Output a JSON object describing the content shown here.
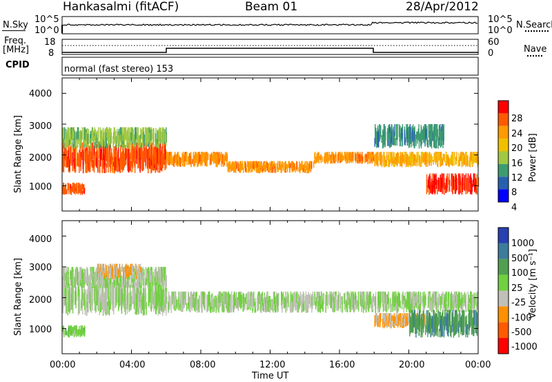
{
  "header": {
    "station": "Hankasalmi (fitACF)",
    "beam": "Beam 01",
    "date": "28/Apr/2012"
  },
  "top_panels": {
    "nsky_label": "N.Sky",
    "nsearch_label": "N.Search",
    "noise_ticks": [
      "10^5",
      "10^0"
    ],
    "noise_ticks_right": [
      "10^5",
      "10^0"
    ],
    "freq_label_1": "Freq.",
    "freq_label_2": "[MHz]",
    "freq_ticks": [
      "18",
      "8"
    ],
    "nave_label": "Nave",
    "nave_ticks": [
      "60",
      "0"
    ],
    "cpid_label": "CPID",
    "cpid_text": "normal (fast stereo) 153"
  },
  "axes": {
    "xticks": [
      "00:00",
      "04:00",
      "08:00",
      "12:00",
      "16:00",
      "20:00",
      "00:00"
    ],
    "xlabel": "Time UT",
    "ylabel": "Slant Range [km]",
    "yticks": [
      "4000",
      "3000",
      "2000",
      "1000"
    ]
  },
  "power_colorbar": {
    "label": "Power [dB]",
    "ticks": [
      "28",
      "24",
      "20",
      "16",
      "12",
      "8",
      "4"
    ],
    "colors": [
      "#ff0000",
      "#ff5a00",
      "#ff9a00",
      "#f0c000",
      "#a0c840",
      "#3c9c70",
      "#2860b0",
      "#0000ff"
    ]
  },
  "velocity_colorbar": {
    "label": "Velocity [m s⁻¹]",
    "ticks": [
      "1000",
      "500",
      "100",
      "25",
      "-25",
      "-100",
      "-500",
      "-1000"
    ],
    "colors": [
      "#2840b0",
      "#3c7c9c",
      "#50a050",
      "#70d040",
      "#c0c0b8",
      "#ff9000",
      "#ff5a00",
      "#ff0000"
    ]
  },
  "chart_data": [
    {
      "type": "heatmap",
      "title": "Power",
      "xlabel": "Time UT",
      "ylabel": "Slant Range [km]",
      "x_range": [
        "00:00",
        "24:00"
      ],
      "ylim": [
        180,
        4500
      ],
      "colorbar": {
        "label": "Power [dB]",
        "range": [
          0,
          30
        ]
      },
      "bands": [
        {
          "x": [
            0,
            6
          ],
          "y": [
            1400,
            2400
          ],
          "value": 26
        },
        {
          "x": [
            0,
            1.3
          ],
          "y": [
            700,
            1100
          ],
          "value": 26
        },
        {
          "x": [
            0,
            6
          ],
          "y": [
            2200,
            2900
          ],
          "value": 12
        },
        {
          "x": [
            6,
            9.5
          ],
          "y": [
            1600,
            2100
          ],
          "value": 22
        },
        {
          "x": [
            9.5,
            14.5
          ],
          "y": [
            1400,
            1800
          ],
          "value": 22
        },
        {
          "x": [
            14.5,
            18
          ],
          "y": [
            1700,
            2100
          ],
          "value": 22
        },
        {
          "x": [
            18,
            24
          ],
          "y": [
            1600,
            2100
          ],
          "value": 20
        },
        {
          "x": [
            21,
            24
          ],
          "y": [
            700,
            1400
          ],
          "value": 28
        },
        {
          "x": [
            18,
            22
          ],
          "y": [
            2200,
            3000
          ],
          "value": 8
        }
      ]
    },
    {
      "type": "heatmap",
      "title": "Velocity",
      "xlabel": "Time UT",
      "ylabel": "Slant Range [km]",
      "x_range": [
        "00:00",
        "24:00"
      ],
      "ylim": [
        180,
        4500
      ],
      "colorbar": {
        "label": "Velocity [m s⁻¹]",
        "range": [
          -1000,
          1000
        ]
      },
      "bands": [
        {
          "x": [
            0,
            6
          ],
          "y": [
            1400,
            2500
          ],
          "value": 0
        },
        {
          "x": [
            0,
            1.3
          ],
          "y": [
            700,
            1100
          ],
          "value": 150
        },
        {
          "x": [
            0,
            6
          ],
          "y": [
            2300,
            3000
          ],
          "value": 0
        },
        {
          "x": [
            2,
            4.5
          ],
          "y": [
            2600,
            3100
          ],
          "value": -300
        },
        {
          "x": [
            6,
            24
          ],
          "y": [
            1500,
            2200
          ],
          "value": 0
        },
        {
          "x": [
            18,
            21
          ],
          "y": [
            1000,
            1500
          ],
          "value": -300
        },
        {
          "x": [
            20,
            24
          ],
          "y": [
            700,
            1600
          ],
          "value": 500
        }
      ]
    }
  ]
}
